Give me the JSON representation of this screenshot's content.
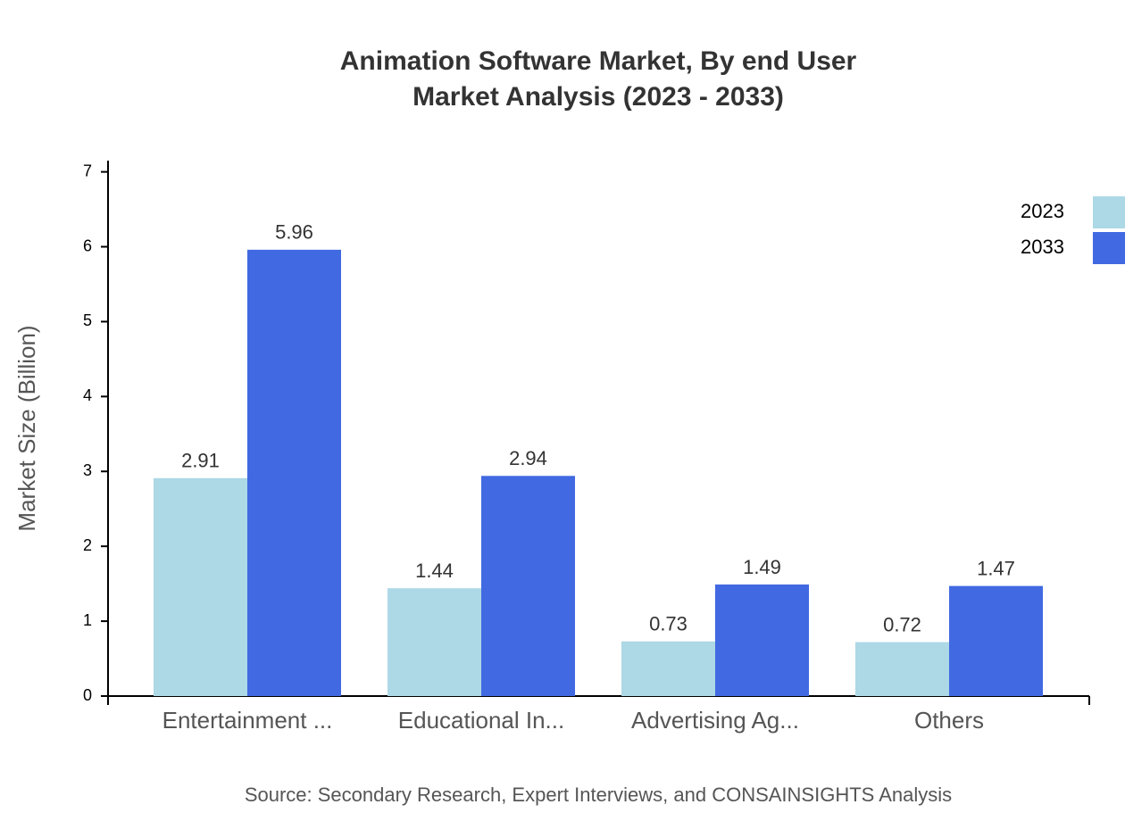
{
  "chart_data": {
    "type": "bar",
    "title": "Animation Software Market, By end User",
    "subtitle": "Market Analysis (2023 - 2033)",
    "y_label": "Market Size (Billion)",
    "source": "Source: Secondary Research, Expert Interviews, and CONSAINSIGHTS Analysis",
    "categories": [
      "Entertainment ...",
      "Educational In...",
      "Advertising Ag...",
      "Others"
    ],
    "series": [
      {
        "name": "2023",
        "color": "#add8e6",
        "values": [
          2.91,
          1.44,
          0.73,
          0.72
        ]
      },
      {
        "name": "2033",
        "color": "#4169e1",
        "values": [
          5.96,
          2.94,
          1.49,
          1.47
        ]
      }
    ],
    "ylim": [
      0,
      7.15
    ],
    "yticks": [
      0,
      1,
      2,
      3,
      4,
      5,
      6,
      7
    ]
  }
}
